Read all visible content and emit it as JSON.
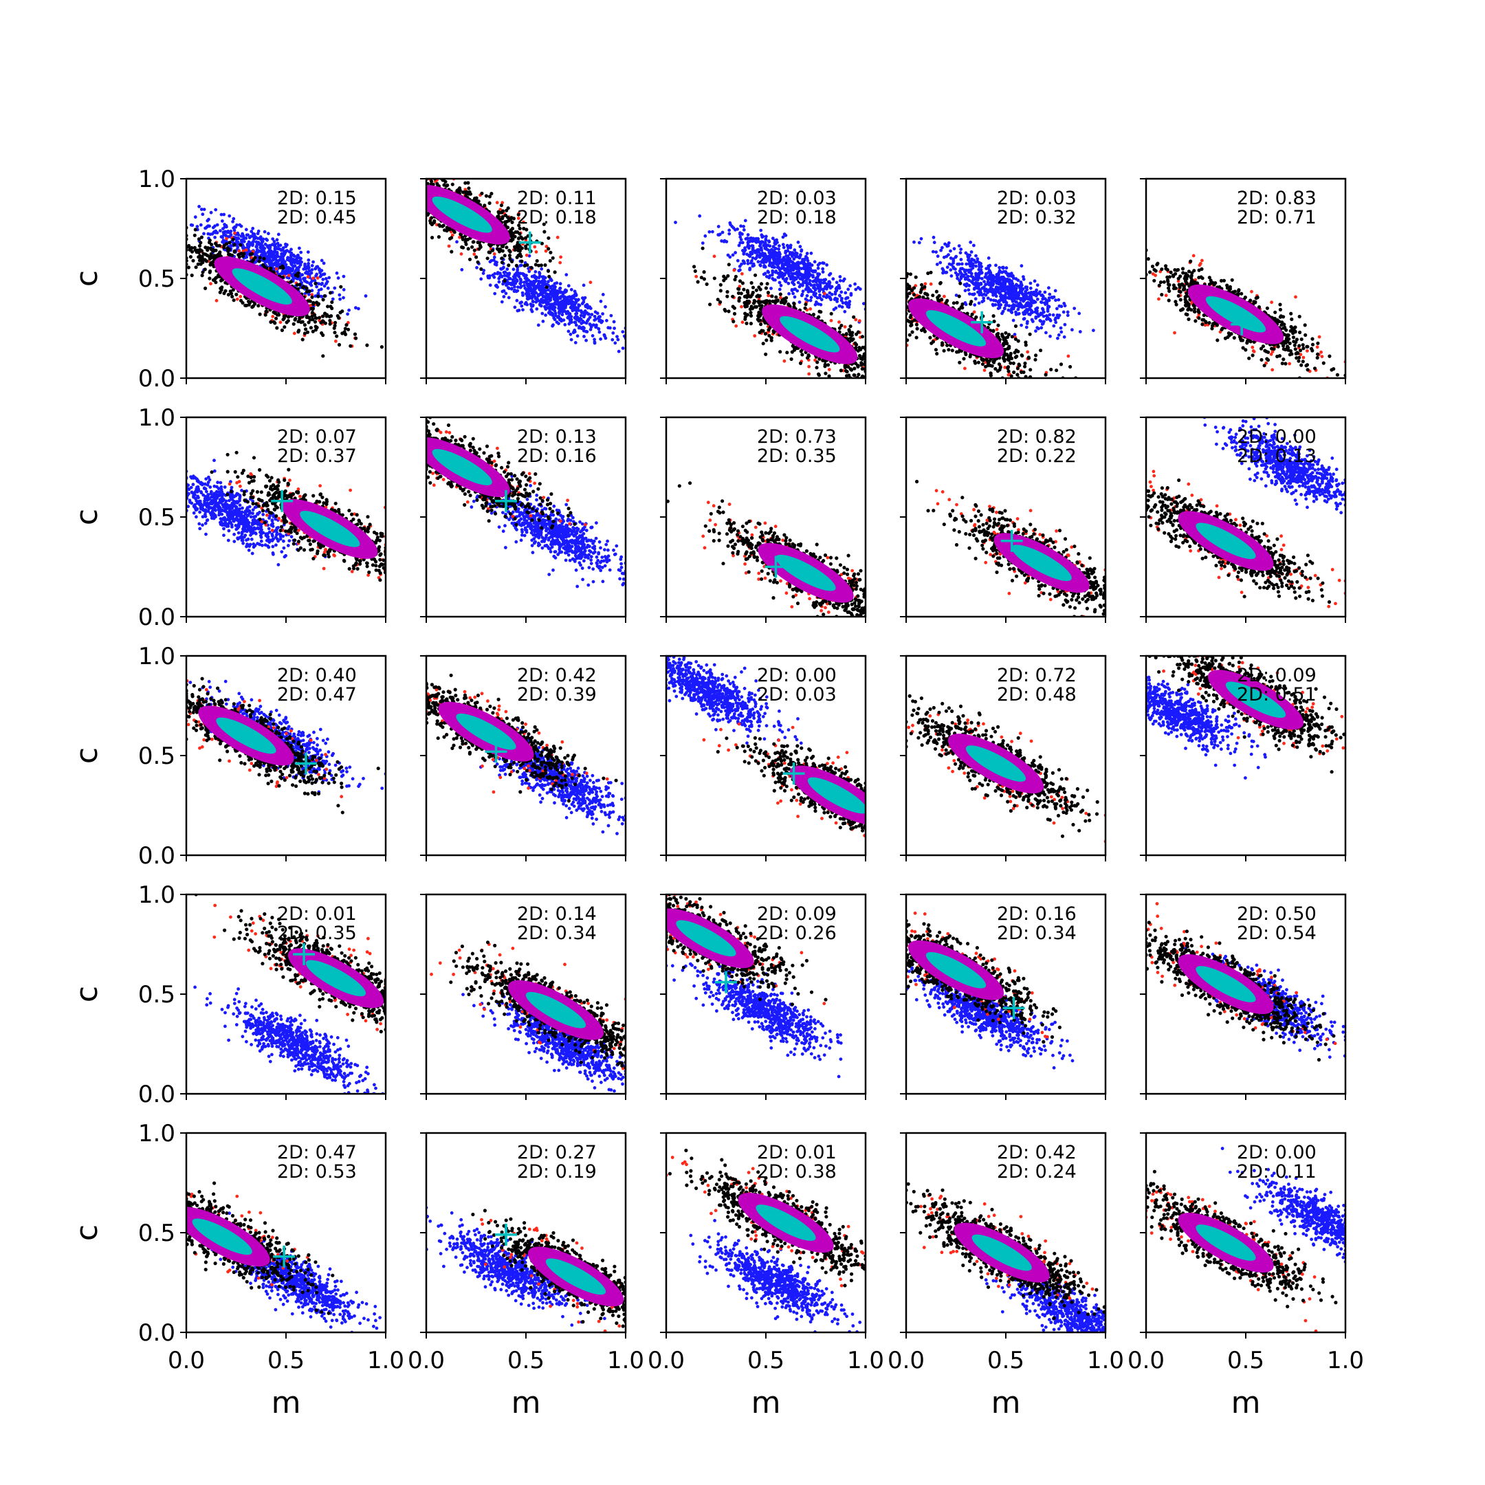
{
  "colors": {
    "outer_cloud": "#ff2a1a",
    "inner_cloud": "#000000",
    "posterior": "#bf00bf",
    "core": "#00bfbf",
    "alt_cloud": "#1a1aff",
    "true_marker": "#00bfbf"
  },
  "chart_data": {
    "type": "scatter",
    "layout": "5x5 grid of scatter panels",
    "xlabel": "m",
    "ylabel": "c",
    "xlim": [
      0.0,
      1.0
    ],
    "ylim": [
      0.0,
      1.0
    ],
    "xticks": [
      "0.0",
      "0.5",
      "1.0"
    ],
    "yticks": [
      "0.0",
      "0.5",
      "1.0"
    ],
    "grid": false,
    "panels": [
      {
        "annotation": [
          "2D: 0.15",
          "2D: 0.45"
        ],
        "main": [
          0.38,
          0.46
        ],
        "alt": [
          0.42,
          0.6
        ],
        "truth": null
      },
      {
        "annotation": [
          "2D: 0.11",
          "2D: 0.18"
        ],
        "main": [
          0.18,
          0.82
        ],
        "alt": [
          0.62,
          0.4
        ],
        "truth": [
          0.52,
          0.68
        ]
      },
      {
        "annotation": [
          "2D: 0.03",
          "2D: 0.18"
        ],
        "main": [
          0.72,
          0.22
        ],
        "alt": [
          0.62,
          0.55
        ],
        "truth": null
      },
      {
        "annotation": [
          "2D: 0.03",
          "2D: 0.32"
        ],
        "main": [
          0.25,
          0.25
        ],
        "alt": [
          0.48,
          0.45
        ],
        "truth": [
          0.38,
          0.28
        ]
      },
      {
        "annotation": [
          "2D: 0.83",
          "2D: 0.71"
        ],
        "main": [
          0.45,
          0.32
        ],
        "alt": null,
        "truth": [
          0.48,
          0.27
        ]
      },
      {
        "annotation": [
          "2D: 0.07",
          "2D: 0.37"
        ],
        "main": [
          0.72,
          0.44
        ],
        "alt": [
          0.22,
          0.52
        ],
        "truth": [
          0.48,
          0.58
        ]
      },
      {
        "annotation": [
          "2D: 0.13",
          "2D: 0.16"
        ],
        "main": [
          0.18,
          0.75
        ],
        "alt": [
          0.65,
          0.42
        ],
        "truth": [
          0.4,
          0.58
        ]
      },
      {
        "annotation": [
          "2D: 0.73",
          "2D: 0.35"
        ],
        "main": [
          0.7,
          0.22
        ],
        "alt": null,
        "truth": [
          0.55,
          0.25
        ]
      },
      {
        "annotation": [
          "2D: 0.82",
          "2D: 0.22"
        ],
        "main": [
          0.68,
          0.27
        ],
        "alt": null,
        "truth": [
          0.53,
          0.38
        ]
      },
      {
        "annotation": [
          "2D: 0.00",
          "2D: 0.13"
        ],
        "main": [
          0.4,
          0.38
        ],
        "alt": [
          0.72,
          0.75
        ],
        "truth": null
      },
      {
        "annotation": [
          "2D: 0.40",
          "2D: 0.47"
        ],
        "main": [
          0.3,
          0.6
        ],
        "alt": [
          0.45,
          0.58
        ],
        "truth": [
          0.6,
          0.46
        ]
      },
      {
        "annotation": [
          "2D: 0.42",
          "2D: 0.39"
        ],
        "main": [
          0.3,
          0.62
        ],
        "alt": [
          0.65,
          0.38
        ],
        "truth": [
          0.35,
          0.52
        ]
      },
      {
        "annotation": [
          "2D: 0.00",
          "2D: 0.03"
        ],
        "main": [
          0.86,
          0.3
        ],
        "alt": [
          0.22,
          0.82
        ],
        "truth": [
          0.64,
          0.41
        ]
      },
      {
        "annotation": [
          "2D: 0.72",
          "2D: 0.48"
        ],
        "main": [
          0.45,
          0.46
        ],
        "alt": null,
        "truth": null
      },
      {
        "annotation": [
          "2D: 0.09",
          "2D: 0.51"
        ],
        "main": [
          0.55,
          0.78
        ],
        "alt": [
          0.15,
          0.72
        ],
        "truth": null
      },
      {
        "annotation": [
          "2D: 0.01",
          "2D: 0.35"
        ],
        "main": [
          0.75,
          0.58
        ],
        "alt": [
          0.55,
          0.25
        ],
        "truth": [
          0.59,
          0.7
        ]
      },
      {
        "annotation": [
          "2D: 0.14",
          "2D: 0.34"
        ],
        "main": [
          0.65,
          0.42
        ],
        "alt": [
          0.7,
          0.25
        ],
        "truth": null
      },
      {
        "annotation": [
          "2D: 0.09",
          "2D: 0.26"
        ],
        "main": [
          0.2,
          0.78
        ],
        "alt": [
          0.5,
          0.42
        ],
        "truth": [
          0.3,
          0.56
        ]
      },
      {
        "annotation": [
          "2D: 0.16",
          "2D: 0.34"
        ],
        "main": [
          0.25,
          0.62
        ],
        "alt": [
          0.4,
          0.4
        ],
        "truth": [
          0.54,
          0.43
        ]
      },
      {
        "annotation": [
          "2D: 0.50",
          "2D: 0.54"
        ],
        "main": [
          0.4,
          0.55
        ],
        "alt": [
          0.6,
          0.47
        ],
        "truth": null
      },
      {
        "annotation": [
          "2D: 0.47",
          "2D: 0.53"
        ],
        "main": [
          0.18,
          0.48
        ],
        "alt": [
          0.55,
          0.25
        ],
        "truth": [
          0.49,
          0.38
        ]
      },
      {
        "annotation": [
          "2D: 0.27",
          "2D: 0.19"
        ],
        "main": [
          0.75,
          0.28
        ],
        "alt": [
          0.4,
          0.32
        ],
        "truth": [
          0.4,
          0.49
        ]
      },
      {
        "annotation": [
          "2D: 0.01",
          "2D: 0.38"
        ],
        "main": [
          0.6,
          0.55
        ],
        "alt": [
          0.55,
          0.25
        ],
        "truth": null
      },
      {
        "annotation": [
          "2D: 0.42",
          "2D: 0.24"
        ],
        "main": [
          0.48,
          0.4
        ],
        "alt": [
          0.85,
          0.08
        ],
        "truth": null
      },
      {
        "annotation": [
          "2D: 0.00",
          "2D: 0.11"
        ],
        "main": [
          0.4,
          0.45
        ],
        "alt": [
          0.9,
          0.55
        ],
        "truth": null
      }
    ]
  }
}
